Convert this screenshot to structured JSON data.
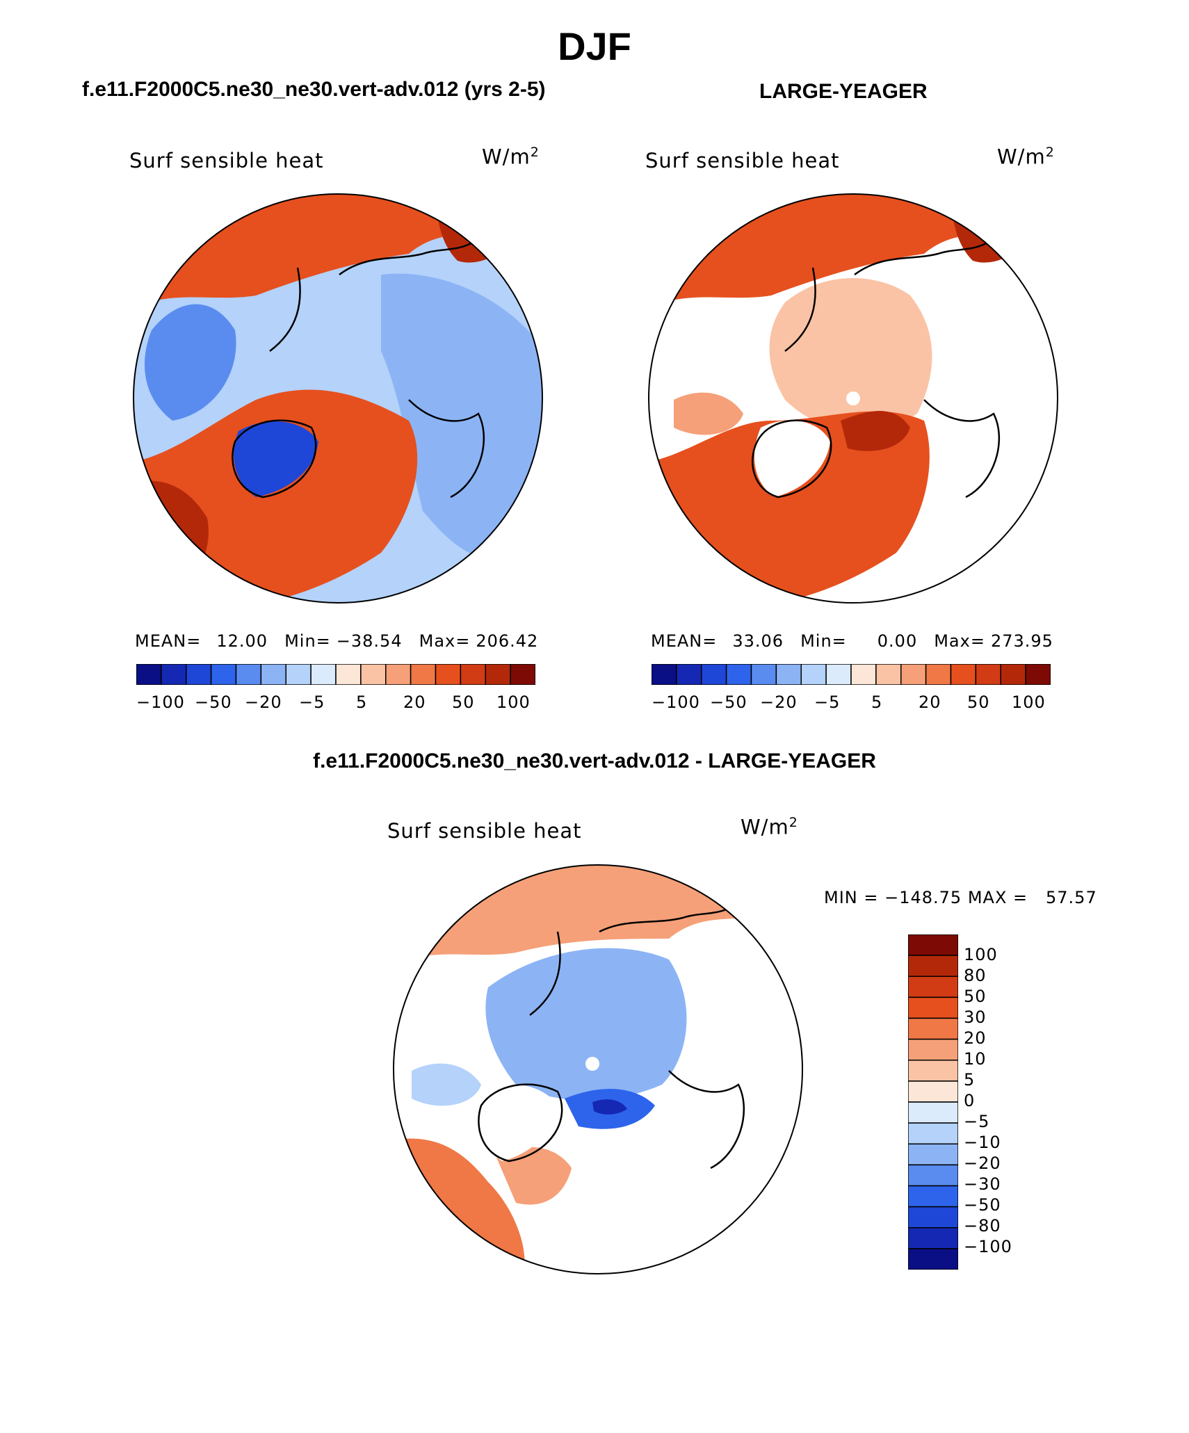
{
  "page": {
    "season": "DJF"
  },
  "panels": [
    {
      "id": "model",
      "case_title": "f.e11.F2000C5.ne30_ne30.vert-adv.012 (yrs 2-5)",
      "variable": "Surf sensible heat",
      "units_base": "W/m",
      "units_exp": "2",
      "stats": {
        "mean_label": "MEAN=",
        "mean": "12.00",
        "min_label": "Min=",
        "min": "−38.54",
        "max_label": "Max=",
        "max": "206.42"
      },
      "colorbar": {
        "tick_labels": [
          "−100",
          "−50",
          "−20",
          "−5",
          "5",
          "20",
          "50",
          "100"
        ]
      }
    },
    {
      "id": "obs",
      "case_title": "LARGE-YEAGER",
      "variable": "Surf sensible heat",
      "units_base": "W/m",
      "units_exp": "2",
      "stats": {
        "mean_label": "MEAN=",
        "mean": "33.06",
        "min_label": "Min=",
        "min": "0.00",
        "max_label": "Max=",
        "max": "273.95"
      },
      "colorbar": {
        "tick_labels": [
          "−100",
          "−50",
          "−20",
          "−5",
          "5",
          "20",
          "50",
          "100"
        ]
      }
    }
  ],
  "difference_panel": {
    "title": "f.e11.F2000C5.ne30_ne30.vert-adv.012 - LARGE-YEAGER",
    "variable": "Surf sensible heat",
    "units_base": "W/m",
    "units_exp": "2",
    "minmax": "MIN = −148.75 MAX =   57.57",
    "colorbar": {
      "tick_labels": [
        "100",
        "80",
        "50",
        "30",
        "20",
        "10",
        "5",
        "0",
        "−5",
        "−10",
        "−20",
        "−30",
        "−50",
        "−80",
        "−100"
      ]
    }
  },
  "colors": {
    "main_scale": [
      "#0a0f85",
      "#1428b4",
      "#1e46d7",
      "#2d64eb",
      "#5a8cf0",
      "#8cb4f5",
      "#b4d2fa",
      "#dcebfc",
      "#fce6d7",
      "#fac3a5",
      "#f5a078",
      "#f07846",
      "#e6501e",
      "#d23c14",
      "#b4280a",
      "#7d0a05"
    ],
    "diff_scale": [
      "#7d0a05",
      "#b4280a",
      "#d23c14",
      "#e6501e",
      "#f07846",
      "#f5a078",
      "#fac3a5",
      "#fce6d7",
      "#dcebfc",
      "#b4d2fa",
      "#8cb4f5",
      "#5a8cf0",
      "#2d64eb",
      "#1e46d7",
      "#1428b4",
      "#0a0f85"
    ]
  }
}
